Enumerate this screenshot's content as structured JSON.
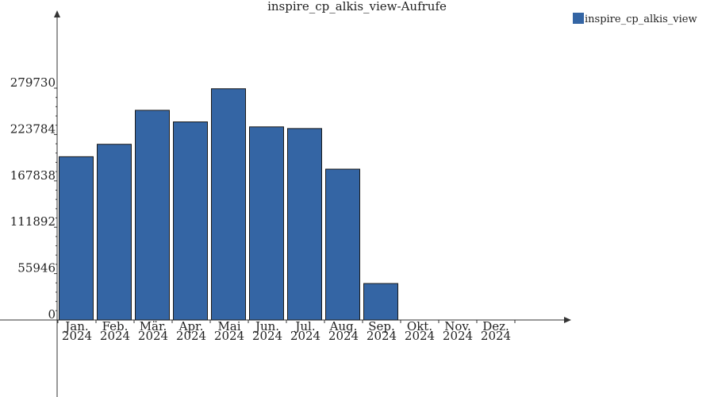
{
  "chart_data": {
    "type": "bar",
    "title": "inspire_cp_alkis_view-Aufrufe",
    "categories": [
      [
        "Jan.",
        "2024"
      ],
      [
        "Feb.",
        "2024"
      ],
      [
        "Mär.",
        "2024"
      ],
      [
        "Apr.",
        "2024"
      ],
      [
        "Mai",
        "2024"
      ],
      [
        "Jun.",
        "2024"
      ],
      [
        "Jul.",
        "2024"
      ],
      [
        "Aug.",
        "2024"
      ],
      [
        "Sep.",
        "2024"
      ],
      [
        "Okt.",
        "2024"
      ],
      [
        "Nov.",
        "2024"
      ],
      [
        "Dez.",
        "2024"
      ]
    ],
    "series": [
      {
        "name": "inspire_cp_alkis_view",
        "color": "#3465a4",
        "values": [
          197000,
          212000,
          253000,
          239000,
          279000,
          233000,
          231000,
          182000,
          44000,
          0,
          0,
          0
        ]
      }
    ],
    "yticks": [
      0,
      55946,
      111892,
      167838,
      223784,
      279730
    ],
    "ylim": [
      0,
      279730
    ],
    "legend_position": "top-right"
  }
}
